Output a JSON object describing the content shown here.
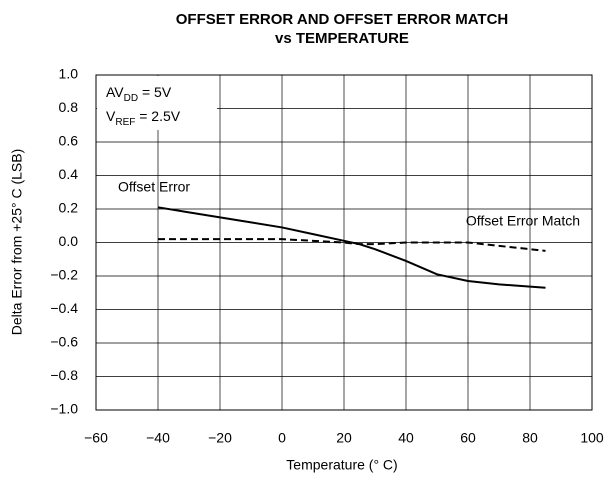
{
  "chart_data": {
    "type": "line",
    "title": [
      "OFFSET ERROR AND OFFSET ERROR MATCH",
      "vs TEMPERATURE"
    ],
    "xlabel": "Temperature (° C)",
    "ylabel": "Delta Error from +25° C (LSB)",
    "annotations": [
      {
        "main": "AV",
        "sub": "DD",
        "rest": " = 5V"
      },
      {
        "main": "V",
        "sub": "REF",
        "rest": " = 2.5V"
      }
    ],
    "x": [
      -40,
      -30,
      -20,
      -10,
      0,
      10,
      20,
      25,
      30,
      40,
      50,
      60,
      70,
      85
    ],
    "series": [
      {
        "name": "Offset Error",
        "color": "#000000",
        "dash": false,
        "values": [
          0.21,
          0.18,
          0.15,
          0.12,
          0.09,
          0.05,
          0.01,
          -0.01,
          -0.04,
          -0.11,
          -0.19,
          -0.23,
          -0.25,
          -0.27
        ]
      },
      {
        "name": "Offset Error Match",
        "color": "#000000",
        "dash": true,
        "values": [
          0.02,
          0.02,
          0.02,
          0.02,
          0.02,
          0.01,
          0.0,
          -0.01,
          -0.01,
          0.0,
          0.0,
          0.0,
          -0.02,
          -0.05
        ]
      }
    ],
    "xlim": [
      -60,
      100
    ],
    "xticks": [
      {
        "value": -60,
        "label": "−60"
      },
      {
        "value": -40,
        "label": "−40"
      },
      {
        "value": -20,
        "label": "−20"
      },
      0,
      20,
      40,
      60,
      80,
      100
    ],
    "ylim": [
      -1,
      1
    ],
    "yticks": [
      {
        "value": -1,
        "label": "−1.0"
      },
      {
        "value": -0.8,
        "label": "−0.8"
      },
      {
        "value": -0.6,
        "label": "−0.6"
      },
      {
        "value": -0.4,
        "label": "−0.4"
      },
      {
        "value": -0.2,
        "label": "−0.2"
      },
      {
        "value": 0,
        "label": "0.0"
      },
      0.2,
      0.4,
      0.6,
      0.8,
      {
        "value": 1,
        "label": "1.0"
      }
    ],
    "grid": true
  }
}
